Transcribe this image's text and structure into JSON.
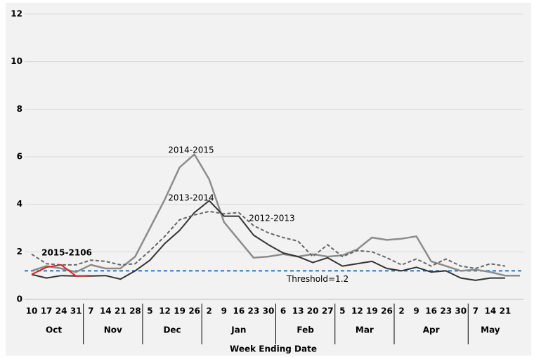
{
  "chart_data": {
    "type": "line",
    "x_label": "Week Ending Date",
    "groups": [
      {
        "name": "Oct",
        "categories": [
          "10",
          "17",
          "24",
          "31"
        ]
      },
      {
        "name": "Nov",
        "categories": [
          "7",
          "14",
          "21",
          "28"
        ]
      },
      {
        "name": "Dec",
        "categories": [
          "5",
          "12",
          "19",
          "26"
        ]
      },
      {
        "name": "Jan",
        "categories": [
          "2",
          "9",
          "16",
          "23",
          "30"
        ]
      },
      {
        "name": "Feb",
        "categories": [
          "6",
          "13",
          "20",
          "27"
        ]
      },
      {
        "name": "Mar",
        "categories": [
          "5",
          "12",
          "19",
          "26"
        ]
      },
      {
        "name": "Apr",
        "categories": [
          "2",
          "9",
          "16",
          "23",
          "30"
        ]
      },
      {
        "name": "May",
        "categories": [
          "7",
          "14",
          "21",
          null
        ]
      }
    ],
    "ylim": [
      0,
      12
    ],
    "yticks": [
      0,
      2,
      4,
      6,
      8,
      10,
      12
    ],
    "grid": true,
    "threshold": {
      "value": 1.2,
      "label": "Threshold=1.2",
      "color": "#1f77c4"
    },
    "series": [
      {
        "name": "2014-2015",
        "color": "#8c8c8c",
        "style": "solid",
        "values": [
          1.2,
          1.4,
          1.3,
          1.15,
          1.45,
          1.3,
          1.3,
          1.8,
          3.0,
          4.2,
          5.55,
          6.1,
          5.05,
          3.25,
          2.5,
          1.75,
          1.8,
          1.9,
          1.8,
          1.9,
          1.8,
          1.85,
          2.1,
          2.6,
          2.5,
          2.55,
          2.65,
          1.6,
          1.4,
          1.2,
          1.25,
          1.15,
          1.0,
          1.0
        ]
      },
      {
        "name": "2013-2014",
        "color": "#333333",
        "style": "solid",
        "values": [
          1.05,
          0.9,
          1.0,
          0.98,
          0.98,
          1.0,
          0.85,
          1.2,
          1.65,
          2.35,
          2.9,
          3.65,
          4.15,
          3.5,
          3.5,
          2.7,
          2.3,
          1.95,
          1.8,
          1.55,
          1.75,
          1.4,
          1.5,
          1.6,
          1.3,
          1.2,
          1.35,
          1.15,
          1.2,
          0.9,
          0.8,
          0.9,
          0.9,
          null
        ]
      },
      {
        "name": "2012-2013",
        "color": "#666666",
        "style": "dashed",
        "values": [
          1.9,
          1.5,
          1.45,
          1.45,
          1.65,
          1.6,
          1.45,
          1.5,
          2.05,
          2.65,
          3.35,
          3.55,
          3.7,
          3.6,
          3.65,
          3.1,
          2.8,
          2.6,
          2.45,
          1.8,
          2.3,
          1.8,
          2.05,
          2.0,
          1.75,
          1.45,
          1.7,
          1.4,
          1.7,
          1.4,
          1.3,
          1.5,
          1.4,
          null
        ]
      },
      {
        "name": "2015-2106",
        "color": "#e02020",
        "style": "solid",
        "values": [
          1.05,
          1.35,
          1.45,
          0.98,
          1.0,
          null,
          null,
          null,
          null,
          null,
          null,
          null,
          null,
          null,
          null,
          null,
          null,
          null,
          null,
          null,
          null,
          null,
          null,
          null,
          null,
          null,
          null,
          null,
          null,
          null,
          null,
          null,
          null,
          null
        ]
      }
    ]
  }
}
